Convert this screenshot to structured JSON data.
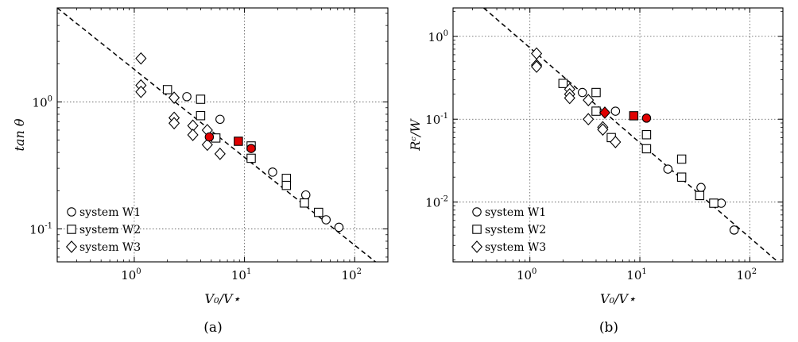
{
  "chart_data": [
    {
      "type": "scatter",
      "panel_label": "(a)",
      "xlabel": "V₀/V⋆",
      "ylabel": "tan θ",
      "xscale": "log",
      "yscale": "log",
      "xlim": [
        0.2,
        200
      ],
      "ylim": [
        0.055,
        5.5
      ],
      "x_ticks": [
        {
          "base": "10",
          "exp": "0"
        },
        {
          "base": "10",
          "exp": "1"
        },
        {
          "base": "10",
          "exp": "2"
        }
      ],
      "y_ticks": [
        {
          "base": "10",
          "exp": "-1"
        },
        {
          "base": "10",
          "exp": "0"
        }
      ],
      "x_tick_values": [
        1,
        10,
        100
      ],
      "y_tick_values": [
        0.1,
        1
      ],
      "grid": "dotted",
      "legend_placement": "lower-left",
      "fit_line": {
        "style": "dashed",
        "x": [
          0.2,
          200
        ],
        "y": [
          5.5,
          0.046
        ]
      },
      "series": [
        {
          "name": "system W1",
          "marker": "circle",
          "fill": "none",
          "points": [
            [
              3.0,
              1.1
            ],
            [
              6.0,
              0.73
            ],
            [
              18,
              0.28
            ],
            [
              36,
              0.185
            ],
            [
              55,
              0.118
            ],
            [
              72,
              0.103
            ]
          ]
        },
        {
          "name": "system W2",
          "marker": "square",
          "fill": "none",
          "points": [
            [
              2.0,
              1.25
            ],
            [
              4.0,
              1.05
            ],
            [
              4.0,
              0.78
            ],
            [
              5.5,
              0.52
            ],
            [
              11.5,
              0.45
            ],
            [
              11.5,
              0.36
            ],
            [
              24,
              0.25
            ],
            [
              24,
              0.22
            ],
            [
              35,
              0.16
            ],
            [
              47,
              0.135
            ]
          ]
        },
        {
          "name": "system W3",
          "marker": "diamond",
          "fill": "none",
          "points": [
            [
              1.15,
              2.2
            ],
            [
              1.15,
              1.35
            ],
            [
              1.15,
              1.2
            ],
            [
              2.3,
              1.08
            ],
            [
              2.3,
              0.75
            ],
            [
              2.3,
              0.68
            ],
            [
              3.4,
              0.65
            ],
            [
              3.4,
              0.55
            ],
            [
              4.6,
              0.6
            ],
            [
              4.6,
              0.46
            ],
            [
              6.0,
              0.39
            ]
          ]
        },
        {
          "name": "",
          "marker": "circle",
          "fill": "#e00000",
          "in_legend": false,
          "points": [
            [
              4.8,
              0.53
            ],
            [
              11.5,
              0.43
            ]
          ]
        },
        {
          "name": "",
          "marker": "square",
          "fill": "#e00000",
          "in_legend": false,
          "points": [
            [
              8.8,
              0.49
            ]
          ]
        }
      ]
    },
    {
      "type": "scatter",
      "panel_label": "(b)",
      "xlabel": "V₀/V⋆",
      "ylabel": "Rᶜ/W",
      "xscale": "log",
      "yscale": "log",
      "xlim": [
        0.2,
        200
      ],
      "ylim": [
        0.0019,
        2.2
      ],
      "x_ticks": [
        {
          "base": "10",
          "exp": "0"
        },
        {
          "base": "10",
          "exp": "1"
        },
        {
          "base": "10",
          "exp": "2"
        }
      ],
      "y_ticks": [
        {
          "base": "10",
          "exp": "-2"
        },
        {
          "base": "10",
          "exp": "-1"
        },
        {
          "base": "10",
          "exp": "0"
        }
      ],
      "x_tick_values": [
        1,
        10,
        100
      ],
      "y_tick_values": [
        0.01,
        0.1,
        1
      ],
      "grid": "dotted",
      "legend_placement": "lower-left",
      "fit_line": {
        "style": "dashed",
        "x": [
          0.38,
          180
        ],
        "y": [
          2.2,
          0.0019
        ]
      },
      "series": [
        {
          "name": "system W1",
          "marker": "circle",
          "fill": "none",
          "points": [
            [
              3.0,
              0.21
            ],
            [
              6.0,
              0.125
            ],
            [
              18,
              0.025
            ],
            [
              36,
              0.015
            ],
            [
              55,
              0.0097
            ],
            [
              72,
              0.0046
            ]
          ]
        },
        {
          "name": "system W2",
          "marker": "square",
          "fill": "none",
          "points": [
            [
              2.0,
              0.27
            ],
            [
              4.0,
              0.21
            ],
            [
              4.0,
              0.125
            ],
            [
              5.5,
              0.06
            ],
            [
              11.5,
              0.065
            ],
            [
              11.5,
              0.044
            ],
            [
              24,
              0.033
            ],
            [
              24,
              0.02
            ],
            [
              35,
              0.012
            ],
            [
              47,
              0.0097
            ]
          ]
        },
        {
          "name": "system W3",
          "marker": "diamond",
          "fill": "none",
          "points": [
            [
              1.15,
              0.62
            ],
            [
              1.15,
              0.45
            ],
            [
              1.15,
              0.43
            ],
            [
              2.3,
              0.23
            ],
            [
              2.3,
              0.2
            ],
            [
              2.3,
              0.18
            ],
            [
              3.4,
              0.17
            ],
            [
              3.4,
              0.1
            ],
            [
              4.6,
              0.08
            ],
            [
              4.6,
              0.075
            ],
            [
              6.0,
              0.053
            ]
          ]
        },
        {
          "name": "",
          "marker": "diamond",
          "fill": "#e00000",
          "in_legend": false,
          "points": [
            [
              4.8,
              0.12
            ]
          ]
        },
        {
          "name": "",
          "marker": "square",
          "fill": "#e00000",
          "in_legend": false,
          "points": [
            [
              8.8,
              0.11
            ]
          ]
        },
        {
          "name": "",
          "marker": "circle",
          "fill": "#e00000",
          "in_legend": false,
          "points": [
            [
              11.5,
              0.103
            ]
          ]
        }
      ]
    }
  ]
}
